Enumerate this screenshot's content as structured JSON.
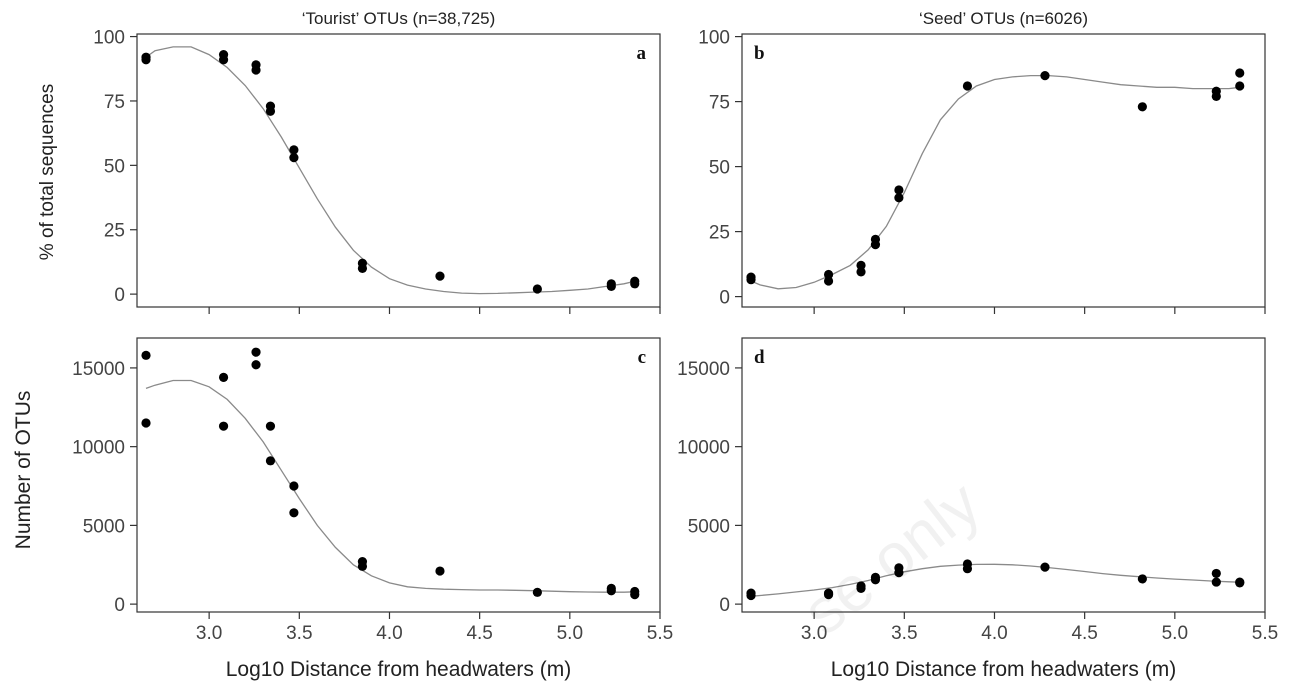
{
  "chart_data": [
    {
      "id": "a",
      "type": "scatter",
      "panel_label": "a",
      "title": "‘Tourist’ OTUs (n=38,725)",
      "xlabel": "",
      "ylabel": "% of total sequences",
      "xlim": [
        2.6,
        5.5
      ],
      "ylim": [
        -5,
        101
      ],
      "xticks": [
        3.0,
        3.5,
        4.0,
        4.5,
        5.0,
        5.5
      ],
      "xtick_labels": [
        "",
        "",
        "",
        "",
        "",
        ""
      ],
      "yticks": [
        0,
        25,
        50,
        75,
        100
      ],
      "ytick_labels": [
        "0",
        "25",
        "50",
        "75",
        "100"
      ],
      "grid": false,
      "points": [
        {
          "x": 2.65,
          "y": 92
        },
        {
          "x": 2.65,
          "y": 91
        },
        {
          "x": 3.08,
          "y": 93
        },
        {
          "x": 3.08,
          "y": 91
        },
        {
          "x": 3.26,
          "y": 89
        },
        {
          "x": 3.26,
          "y": 87
        },
        {
          "x": 3.34,
          "y": 73
        },
        {
          "x": 3.34,
          "y": 71
        },
        {
          "x": 3.47,
          "y": 56
        },
        {
          "x": 3.47,
          "y": 53
        },
        {
          "x": 3.85,
          "y": 12
        },
        {
          "x": 3.85,
          "y": 10
        },
        {
          "x": 4.28,
          "y": 7
        },
        {
          "x": 4.82,
          "y": 2
        },
        {
          "x": 5.23,
          "y": 4
        },
        {
          "x": 5.23,
          "y": 3
        },
        {
          "x": 5.36,
          "y": 5
        },
        {
          "x": 5.36,
          "y": 4
        }
      ],
      "curve": [
        [
          2.65,
          92
        ],
        [
          2.7,
          94.5
        ],
        [
          2.8,
          96
        ],
        [
          2.9,
          96
        ],
        [
          3.0,
          93
        ],
        [
          3.1,
          88
        ],
        [
          3.2,
          81
        ],
        [
          3.3,
          72
        ],
        [
          3.4,
          61
        ],
        [
          3.5,
          49
        ],
        [
          3.6,
          37
        ],
        [
          3.7,
          26
        ],
        [
          3.8,
          17
        ],
        [
          3.9,
          10.5
        ],
        [
          4.0,
          6
        ],
        [
          4.1,
          3.5
        ],
        [
          4.2,
          2
        ],
        [
          4.3,
          1
        ],
        [
          4.4,
          0.4
        ],
        [
          4.5,
          0.2
        ],
        [
          4.6,
          0.3
        ],
        [
          4.7,
          0.5
        ],
        [
          4.8,
          0.8
        ],
        [
          4.9,
          1
        ],
        [
          5.0,
          1.5
        ],
        [
          5.1,
          2
        ],
        [
          5.2,
          3
        ],
        [
          5.3,
          4
        ],
        [
          5.36,
          5
        ]
      ]
    },
    {
      "id": "b",
      "type": "scatter",
      "panel_label": "b",
      "title": "‘Seed’ OTUs (n=6026)",
      "xlabel": "",
      "ylabel": "",
      "xlim": [
        2.6,
        5.5
      ],
      "ylim": [
        -4,
        101
      ],
      "xticks": [
        3.0,
        3.5,
        4.0,
        4.5,
        5.0,
        5.5
      ],
      "xtick_labels": [
        "",
        "",
        "",
        "",
        "",
        ""
      ],
      "yticks": [
        0,
        25,
        50,
        75,
        100
      ],
      "ytick_labels": [
        "0",
        "25",
        "50",
        "75",
        "100"
      ],
      "grid": false,
      "points": [
        {
          "x": 2.65,
          "y": 7.5
        },
        {
          "x": 2.65,
          "y": 6.5
        },
        {
          "x": 3.08,
          "y": 8.5
        },
        {
          "x": 3.08,
          "y": 6
        },
        {
          "x": 3.26,
          "y": 12
        },
        {
          "x": 3.26,
          "y": 9.5
        },
        {
          "x": 3.34,
          "y": 22
        },
        {
          "x": 3.34,
          "y": 20
        },
        {
          "x": 3.47,
          "y": 41
        },
        {
          "x": 3.47,
          "y": 38
        },
        {
          "x": 3.85,
          "y": 81
        },
        {
          "x": 4.28,
          "y": 85
        },
        {
          "x": 4.82,
          "y": 73
        },
        {
          "x": 5.23,
          "y": 79
        },
        {
          "x": 5.23,
          "y": 77
        },
        {
          "x": 5.36,
          "y": 86
        },
        {
          "x": 5.36,
          "y": 81
        }
      ],
      "curve": [
        [
          2.65,
          6
        ],
        [
          2.7,
          4.5
        ],
        [
          2.8,
          3
        ],
        [
          2.9,
          3.5
        ],
        [
          3.0,
          5.5
        ],
        [
          3.1,
          8.5
        ],
        [
          3.2,
          12
        ],
        [
          3.3,
          18
        ],
        [
          3.4,
          27
        ],
        [
          3.5,
          40
        ],
        [
          3.6,
          55
        ],
        [
          3.7,
          68
        ],
        [
          3.8,
          76
        ],
        [
          3.9,
          81
        ],
        [
          4.0,
          83.5
        ],
        [
          4.1,
          84.5
        ],
        [
          4.2,
          85
        ],
        [
          4.3,
          85
        ],
        [
          4.4,
          84.5
        ],
        [
          4.5,
          83.5
        ],
        [
          4.6,
          82.5
        ],
        [
          4.7,
          81.5
        ],
        [
          4.8,
          81
        ],
        [
          4.9,
          80.5
        ],
        [
          5.0,
          80.5
        ],
        [
          5.1,
          80
        ],
        [
          5.2,
          80
        ],
        [
          5.3,
          80
        ],
        [
          5.36,
          80.5
        ]
      ]
    },
    {
      "id": "c",
      "type": "scatter",
      "panel_label": "c",
      "title": "",
      "xlabel": "Log10 Distance from headwaters (m)",
      "ylabel": "",
      "xlim": [
        2.6,
        5.5
      ],
      "ylim": [
        -500,
        16900
      ],
      "xticks": [
        3.0,
        3.5,
        4.0,
        4.5,
        5.0,
        5.5
      ],
      "xtick_labels": [
        "3.0",
        "3.5",
        "4.0",
        "4.5",
        "5.0",
        "5.5"
      ],
      "yticks": [
        0,
        5000,
        10000,
        15000
      ],
      "ytick_labels": [
        "0",
        "5000",
        "10000",
        "15000"
      ],
      "grid": false,
      "points": [
        {
          "x": 2.65,
          "y": 15800
        },
        {
          "x": 2.65,
          "y": 11500
        },
        {
          "x": 3.08,
          "y": 14400
        },
        {
          "x": 3.08,
          "y": 11300
        },
        {
          "x": 3.26,
          "y": 16000
        },
        {
          "x": 3.26,
          "y": 15200
        },
        {
          "x": 3.34,
          "y": 11300
        },
        {
          "x": 3.34,
          "y": 9100
        },
        {
          "x": 3.47,
          "y": 7500
        },
        {
          "x": 3.47,
          "y": 5800
        },
        {
          "x": 3.85,
          "y": 2700
        },
        {
          "x": 3.85,
          "y": 2400
        },
        {
          "x": 4.28,
          "y": 2100
        },
        {
          "x": 4.82,
          "y": 750
        },
        {
          "x": 5.23,
          "y": 1000
        },
        {
          "x": 5.23,
          "y": 850
        },
        {
          "x": 5.36,
          "y": 800
        },
        {
          "x": 5.36,
          "y": 600
        }
      ],
      "curve": [
        [
          2.65,
          13700
        ],
        [
          2.7,
          13900
        ],
        [
          2.8,
          14200
        ],
        [
          2.9,
          14200
        ],
        [
          3.0,
          13800
        ],
        [
          3.1,
          13000
        ],
        [
          3.2,
          11800
        ],
        [
          3.3,
          10300
        ],
        [
          3.4,
          8500
        ],
        [
          3.5,
          6700
        ],
        [
          3.6,
          5000
        ],
        [
          3.7,
          3600
        ],
        [
          3.8,
          2500
        ],
        [
          3.9,
          1800
        ],
        [
          4.0,
          1350
        ],
        [
          4.1,
          1100
        ],
        [
          4.2,
          1000
        ],
        [
          4.3,
          950
        ],
        [
          4.4,
          920
        ],
        [
          4.5,
          900
        ],
        [
          4.6,
          900
        ],
        [
          4.7,
          880
        ],
        [
          4.8,
          850
        ],
        [
          4.9,
          820
        ],
        [
          5.0,
          790
        ],
        [
          5.1,
          770
        ],
        [
          5.2,
          760
        ],
        [
          5.3,
          760
        ],
        [
          5.36,
          780
        ]
      ]
    },
    {
      "id": "d",
      "type": "scatter",
      "panel_label": "d",
      "title": "",
      "xlabel": "Log10 Distance from headwaters (m)",
      "ylabel": "",
      "xlim": [
        2.6,
        5.5
      ],
      "ylim": [
        -500,
        16900
      ],
      "xticks": [
        3.0,
        3.5,
        4.0,
        4.5,
        5.0,
        5.5
      ],
      "xtick_labels": [
        "3.0",
        "3.5",
        "4.0",
        "4.5",
        "5.0",
        "5.5"
      ],
      "yticks": [
        0,
        5000,
        10000,
        15000
      ],
      "ytick_labels": [
        "0",
        "5000",
        "10000",
        "15000"
      ],
      "grid": false,
      "points": [
        {
          "x": 2.65,
          "y": 700
        },
        {
          "x": 2.65,
          "y": 550
        },
        {
          "x": 3.08,
          "y": 700
        },
        {
          "x": 3.08,
          "y": 600
        },
        {
          "x": 3.26,
          "y": 1150
        },
        {
          "x": 3.26,
          "y": 1000
        },
        {
          "x": 3.34,
          "y": 1700
        },
        {
          "x": 3.34,
          "y": 1550
        },
        {
          "x": 3.47,
          "y": 2300
        },
        {
          "x": 3.47,
          "y": 2000
        },
        {
          "x": 3.85,
          "y": 2550
        },
        {
          "x": 3.85,
          "y": 2250
        },
        {
          "x": 4.28,
          "y": 2350
        },
        {
          "x": 4.82,
          "y": 1600
        },
        {
          "x": 5.23,
          "y": 1950
        },
        {
          "x": 5.23,
          "y": 1400
        },
        {
          "x": 5.36,
          "y": 1400
        },
        {
          "x": 5.36,
          "y": 1350
        }
      ],
      "curve": [
        [
          2.65,
          500
        ],
        [
          2.8,
          650
        ],
        [
          3.0,
          900
        ],
        [
          3.1,
          1050
        ],
        [
          3.2,
          1250
        ],
        [
          3.3,
          1500
        ],
        [
          3.4,
          1800
        ],
        [
          3.5,
          2050
        ],
        [
          3.6,
          2250
        ],
        [
          3.7,
          2400
        ],
        [
          3.8,
          2480
        ],
        [
          3.9,
          2520
        ],
        [
          4.0,
          2530
        ],
        [
          4.1,
          2500
        ],
        [
          4.2,
          2420
        ],
        [
          4.3,
          2320
        ],
        [
          4.4,
          2200
        ],
        [
          4.5,
          2070
        ],
        [
          4.6,
          1940
        ],
        [
          4.7,
          1830
        ],
        [
          4.8,
          1740
        ],
        [
          4.9,
          1660
        ],
        [
          5.0,
          1590
        ],
        [
          5.1,
          1530
        ],
        [
          5.2,
          1470
        ],
        [
          5.3,
          1420
        ],
        [
          5.36,
          1390
        ]
      ]
    }
  ],
  "shared_ylabel_bottom": "Number of OTUs",
  "watermark": "se only"
}
